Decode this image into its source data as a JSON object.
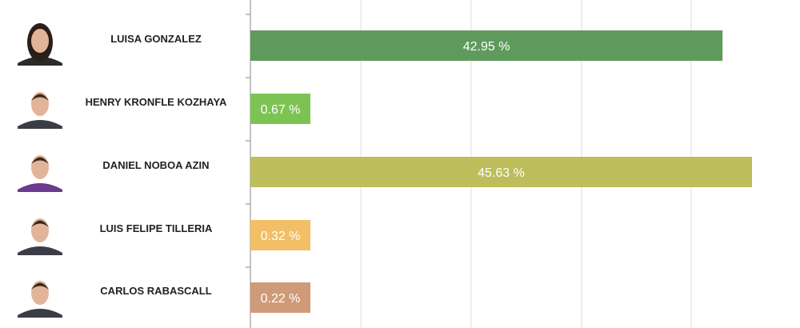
{
  "chart_data": {
    "type": "bar",
    "orientation": "horizontal",
    "categories": [
      "LUISA GONZALEZ",
      "HENRY KRONFLE KOZHAYA",
      "DANIEL NOBOA AZIN",
      "LUIS FELIPE TILLERIA",
      "CARLOS RABASCALL"
    ],
    "values": [
      42.95,
      0.67,
      45.63,
      0.32,
      0.22
    ],
    "value_labels": [
      "42.95 %",
      "0.67 %",
      "45.63 %",
      "0.32 %",
      "0.22 %"
    ],
    "colors": [
      "#5e9a5c",
      "#7dc354",
      "#bdbd5c",
      "#f2bf66",
      "#cf9a78"
    ],
    "xlim": [
      0,
      45.63
    ],
    "grid": true,
    "title": "",
    "xlabel": "",
    "ylabel": ""
  },
  "candidates": [
    {
      "name": "LUISA GONZALEZ",
      "avatar": "female-portrait-icon"
    },
    {
      "name": "HENRY KRONFLE KOZHAYA",
      "avatar": "male-portrait-icon"
    },
    {
      "name": "DANIEL NOBOA AZIN",
      "avatar": "male-portrait-icon"
    },
    {
      "name": "LUIS FELIPE TILLERIA",
      "avatar": "male-portrait-icon"
    },
    {
      "name": "CARLOS RABASCALL",
      "avatar": "male-portrait-icon"
    }
  ]
}
